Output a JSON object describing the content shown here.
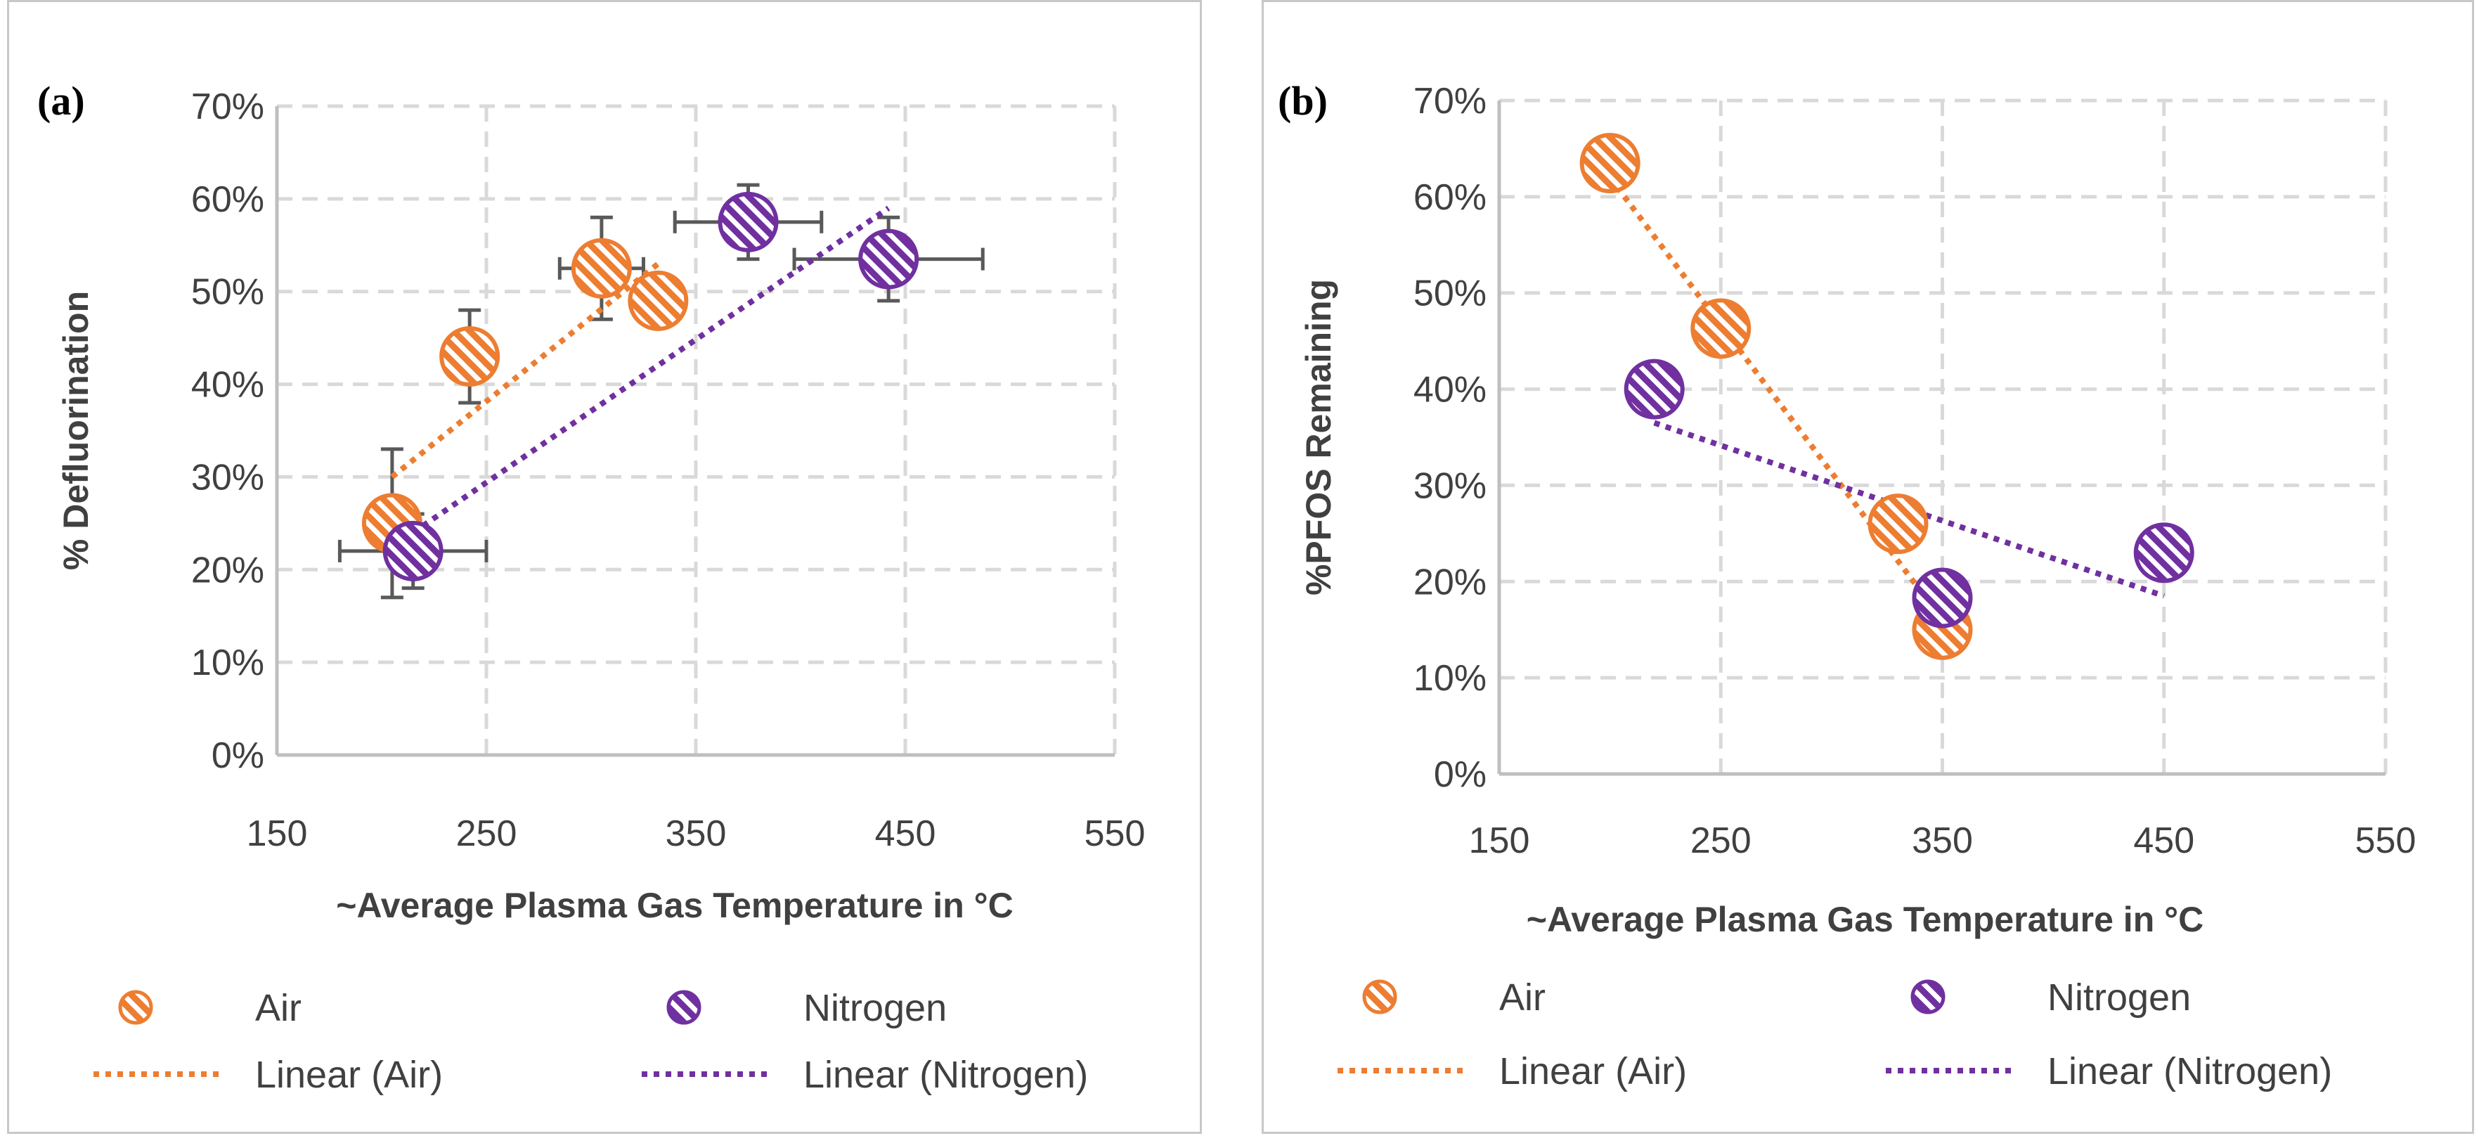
{
  "colors": {
    "air": "#ED7D31",
    "nitrogen": "#7030A0",
    "grid": "#d9d9d9",
    "axis": "#bfbfbf",
    "errorbar": "#595959",
    "text": "#404040"
  },
  "chart_data": [
    {
      "type": "scatter",
      "panel_label": "(a)",
      "xlabel": "~Average Plasma Gas Temperature in °C",
      "ylabel": "% Defluorination",
      "xlim": [
        150,
        550
      ],
      "ylim": [
        0,
        0.7
      ],
      "x_ticks": [
        150,
        250,
        350,
        450,
        550
      ],
      "x_tick_labels": [
        "150",
        "250",
        "350",
        "450",
        "550"
      ],
      "y_ticks": [
        0,
        0.1,
        0.2,
        0.3,
        0.4,
        0.5,
        0.6,
        0.7
      ],
      "y_tick_labels": [
        "0%",
        "10%",
        "20%",
        "30%",
        "40%",
        "50%",
        "60%",
        "70%"
      ],
      "grid": true,
      "series": [
        {
          "name": "Air",
          "color_key": "air",
          "points": [
            {
              "x": 205,
              "y": 0.25,
              "xerr": 0,
              "yerr": 0.08
            },
            {
              "x": 242,
              "y": 0.43,
              "xerr": 0,
              "yerr": 0.05
            },
            {
              "x": 305,
              "y": 0.525,
              "xerr": 20,
              "yerr": 0.055
            },
            {
              "x": 332,
              "y": 0.49,
              "xerr": 0,
              "yerr": 0
            }
          ]
        },
        {
          "name": "Nitrogen",
          "color_key": "nitrogen",
          "points": [
            {
              "x": 215,
              "y": 0.22,
              "xerr": 35,
              "yerr": 0.04
            },
            {
              "x": 375,
              "y": 0.575,
              "xerr": 35,
              "yerr": 0.04
            },
            {
              "x": 442,
              "y": 0.535,
              "xerr": 45,
              "yerr": 0.045
            }
          ]
        }
      ],
      "trendlines": [
        {
          "name": "Linear (Air)",
          "color_key": "air",
          "x": [
            205,
            332
          ],
          "y": [
            0.3,
            0.53
          ]
        },
        {
          "name": "Linear (Nitrogen)",
          "color_key": "nitrogen",
          "x": [
            215,
            442
          ],
          "y": [
            0.24,
            0.59
          ]
        }
      ],
      "legend": [
        {
          "label": "Air",
          "kind": "marker",
          "color_key": "air"
        },
        {
          "label": "Nitrogen",
          "kind": "marker",
          "color_key": "nitrogen"
        },
        {
          "label": "Linear (Air)",
          "kind": "line",
          "color_key": "air"
        },
        {
          "label": "Linear (Nitrogen)",
          "kind": "line",
          "color_key": "nitrogen"
        }
      ]
    },
    {
      "type": "scatter",
      "panel_label": "(b)",
      "xlabel": "~Average Plasma Gas Temperature in °C",
      "ylabel": "%PFOS Remaining",
      "xlim": [
        150,
        550
      ],
      "ylim": [
        0,
        0.7
      ],
      "x_ticks": [
        150,
        250,
        350,
        450,
        550
      ],
      "x_tick_labels": [
        "150",
        "250",
        "350",
        "450",
        "550"
      ],
      "y_ticks": [
        0,
        0.1,
        0.2,
        0.3,
        0.4,
        0.5,
        0.6,
        0.7
      ],
      "y_tick_labels": [
        "0%",
        "10%",
        "20%",
        "30%",
        "40%",
        "50%",
        "60%",
        "70%"
      ],
      "grid": true,
      "series": [
        {
          "name": "Air",
          "color_key": "air",
          "points": [
            {
              "x": 200,
              "y": 0.635
            },
            {
              "x": 250,
              "y": 0.463
            },
            {
              "x": 330,
              "y": 0.26
            },
            {
              "x": 350,
              "y": 0.15
            }
          ]
        },
        {
          "name": "Nitrogen",
          "color_key": "nitrogen",
          "points": [
            {
              "x": 220,
              "y": 0.4
            },
            {
              "x": 350,
              "y": 0.183
            },
            {
              "x": 450,
              "y": 0.23
            }
          ]
        }
      ],
      "trendlines": [
        {
          "name": "Linear (Air)",
          "color_key": "air",
          "x": [
            200,
            350
          ],
          "y": [
            0.62,
            0.16
          ]
        },
        {
          "name": "Linear (Nitrogen)",
          "color_key": "nitrogen",
          "x": [
            220,
            450
          ],
          "y": [
            0.365,
            0.185
          ]
        }
      ],
      "legend": [
        {
          "label": "Air",
          "kind": "marker",
          "color_key": "air"
        },
        {
          "label": "Nitrogen",
          "kind": "marker",
          "color_key": "nitrogen"
        },
        {
          "label": "Linear (Air)",
          "kind": "line",
          "color_key": "air"
        },
        {
          "label": "Linear (Nitrogen)",
          "kind": "line",
          "color_key": "nitrogen"
        }
      ]
    }
  ]
}
